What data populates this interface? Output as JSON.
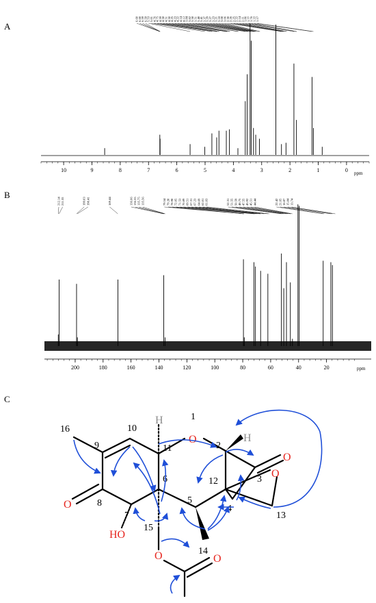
{
  "panels": {
    "a": "A",
    "b": "B",
    "c": "C"
  },
  "chart_data": [
    {
      "type": "line",
      "panel": "A",
      "spectrum": "1H NMR",
      "xunit": "ppm",
      "xlim": [
        10.8,
        -0.8
      ],
      "x_reversed": true,
      "ticks": [
        10,
        9,
        8,
        7,
        6,
        5,
        4,
        3,
        2,
        1,
        0
      ],
      "peak_labels": [
        "6.60",
        "6.60",
        "6.59",
        "6.59",
        "5.53",
        "5.01",
        "4.76",
        "4.75",
        "4.59",
        "4.58",
        "4.51",
        "4.50",
        "4.25",
        "4.23",
        "4.22",
        "4.14",
        "4.12",
        "3.84",
        "3.82",
        "3.58",
        "3.51",
        "3.48",
        "3.41",
        "3.37",
        "3.29",
        "3.27",
        "3.23",
        "3.21",
        "3.18",
        "3.08",
        "3.06",
        "2.30",
        "2.26",
        "2.25",
        "2.22",
        "2.14",
        "2.11",
        "1.86",
        "1.77",
        "1.76",
        "1.22",
        "1.17"
      ],
      "peaks": [
        {
          "x": 8.55,
          "y": 0.05
        },
        {
          "x": 6.6,
          "y": 0.15
        },
        {
          "x": 6.59,
          "y": 0.12
        },
        {
          "x": 5.53,
          "y": 0.08
        },
        {
          "x": 5.01,
          "y": 0.06
        },
        {
          "x": 4.76,
          "y": 0.16
        },
        {
          "x": 4.59,
          "y": 0.13
        },
        {
          "x": 4.51,
          "y": 0.18
        },
        {
          "x": 4.25,
          "y": 0.18
        },
        {
          "x": 4.14,
          "y": 0.19
        },
        {
          "x": 3.84,
          "y": 0.05
        },
        {
          "x": 3.58,
          "y": 0.4
        },
        {
          "x": 3.51,
          "y": 0.6
        },
        {
          "x": 3.41,
          "y": 0.98
        },
        {
          "x": 3.37,
          "y": 0.85
        },
        {
          "x": 3.29,
          "y": 0.2
        },
        {
          "x": 3.21,
          "y": 0.15
        },
        {
          "x": 3.08,
          "y": 0.12
        },
        {
          "x": 2.5,
          "y": 0.97
        },
        {
          "x": 2.3,
          "y": 0.08
        },
        {
          "x": 2.14,
          "y": 0.09
        },
        {
          "x": 1.86,
          "y": 0.68
        },
        {
          "x": 1.77,
          "y": 0.26
        },
        {
          "x": 1.22,
          "y": 0.58
        },
        {
          "x": 1.17,
          "y": 0.2
        },
        {
          "x": 0.86,
          "y": 0.06
        }
      ]
    },
    {
      "type": "line",
      "panel": "B",
      "spectrum": "13C NMR",
      "xunit": "ppm",
      "xlim": [
        222,
        -12
      ],
      "x_reversed": true,
      "ticks": [
        200,
        180,
        160,
        140,
        120,
        100,
        80,
        60,
        40,
        20
      ],
      "peak_labels": [
        "212.14",
        "211.55",
        "199.03",
        "198.41",
        "169.44",
        "136.66",
        "136.55",
        "135.75",
        "135.56",
        "79.54",
        "79.28",
        "78.98",
        "72.05",
        "71.53",
        "70.89",
        "69.51",
        "67.31",
        "67.23",
        "64.69",
        "62.01",
        "61.03",
        "52.31",
        "51.55",
        "50.59",
        "48.75",
        "47.55",
        "45.92",
        "45.51",
        "44.44",
        "22.42",
        "21.65",
        "16.87",
        "15.84",
        "13.74"
      ],
      "peaks": [
        {
          "x": 212.1,
          "y": 0.08
        },
        {
          "x": 211.5,
          "y": 0.46
        },
        {
          "x": 199.0,
          "y": 0.43
        },
        {
          "x": 198.4,
          "y": 0.06
        },
        {
          "x": 169.4,
          "y": 0.46
        },
        {
          "x": 136.6,
          "y": 0.49
        },
        {
          "x": 135.6,
          "y": 0.06
        },
        {
          "x": 79.5,
          "y": 0.6
        },
        {
          "x": 78.9,
          "y": 0.06
        },
        {
          "x": 72.0,
          "y": 0.58
        },
        {
          "x": 70.9,
          "y": 0.55
        },
        {
          "x": 67.2,
          "y": 0.52
        },
        {
          "x": 62.0,
          "y": 0.5
        },
        {
          "x": 52.3,
          "y": 0.64
        },
        {
          "x": 50.6,
          "y": 0.4
        },
        {
          "x": 48.7,
          "y": 0.58
        },
        {
          "x": 45.9,
          "y": 0.44
        },
        {
          "x": 44.4,
          "y": 0.05
        },
        {
          "x": 40.5,
          "y": 0.98
        },
        {
          "x": 39.6,
          "y": 0.97
        },
        {
          "x": 22.4,
          "y": 0.59
        },
        {
          "x": 16.9,
          "y": 0.58
        },
        {
          "x": 15.8,
          "y": 0.56
        }
      ]
    }
  ],
  "structure": {
    "atoms": [
      {
        "id": "1",
        "label": "1"
      },
      {
        "id": "2",
        "label": "2"
      },
      {
        "id": "3",
        "label": "3"
      },
      {
        "id": "4",
        "label": "4"
      },
      {
        "id": "5",
        "label": "5"
      },
      {
        "id": "6",
        "label": "6"
      },
      {
        "id": "7",
        "label": "7"
      },
      {
        "id": "8",
        "label": "8"
      },
      {
        "id": "9",
        "label": "9"
      },
      {
        "id": "10",
        "label": "10"
      },
      {
        "id": "11",
        "label": "11"
      },
      {
        "id": "12",
        "label": "12"
      },
      {
        "id": "13",
        "label": "13"
      },
      {
        "id": "14",
        "label": "14"
      },
      {
        "id": "15",
        "label": "15"
      },
      {
        "id": "16",
        "label": "16"
      }
    ],
    "heteroatoms": [
      {
        "id": "O1",
        "label": "O"
      },
      {
        "id": "O3",
        "label": "O"
      },
      {
        "id": "O8",
        "label": "O"
      },
      {
        "id": "Oep",
        "label": "O"
      },
      {
        "id": "OH7",
        "label": "HO"
      },
      {
        "id": "Oac",
        "label": "O"
      },
      {
        "id": "Ocarb",
        "label": "O"
      },
      {
        "id": "H11",
        "label": "H"
      },
      {
        "id": "H2",
        "label": "H"
      }
    ],
    "colors": {
      "oxygen": "#e6261f",
      "hydrogen": "#8c8c8c",
      "arrow": "#1f4fd8",
      "bond": "#000000"
    }
  }
}
